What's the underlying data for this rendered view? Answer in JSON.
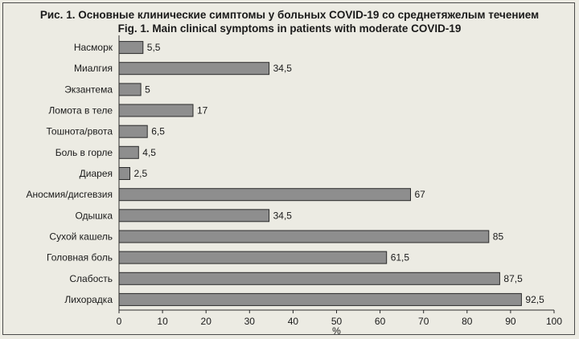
{
  "chart_data": {
    "type": "bar",
    "orientation": "horizontal",
    "title": "Рис. 1. Основные клинические симптомы у больных COVID-19 со среднетяжелым течением",
    "subtitle": "Fig. 1. Main clinical symptoms in patients with moderate COVID-19",
    "categories": [
      "Насморк",
      "Миалгия",
      "Экзантема",
      "Ломота в теле",
      "Тошнота/рвота",
      "Боль в горле",
      "Диарея",
      "Аносмия/дисгевзия",
      "Одышка",
      "Сухой кашель",
      "Головная боль",
      "Слабость",
      "Лихорадка"
    ],
    "values": [
      5.5,
      34.5,
      5,
      17,
      6.5,
      4.5,
      2.5,
      67,
      34.5,
      85,
      61.5,
      87.5,
      92.5
    ],
    "value_labels": [
      "5,5",
      "34,5",
      "5",
      "17",
      "6,5",
      "4,5",
      "2,5",
      "67",
      "34,5",
      "85",
      "61,5",
      "87,5",
      "92,5"
    ],
    "xlabel": "%",
    "ylabel": "",
    "xlim": [
      0,
      100
    ],
    "xticks": [
      "0",
      "10",
      "20",
      "30",
      "40",
      "50",
      "60",
      "70",
      "80",
      "90",
      "100"
    ],
    "grid": false,
    "legend": "none",
    "bar_color": "#8e8e8e"
  }
}
